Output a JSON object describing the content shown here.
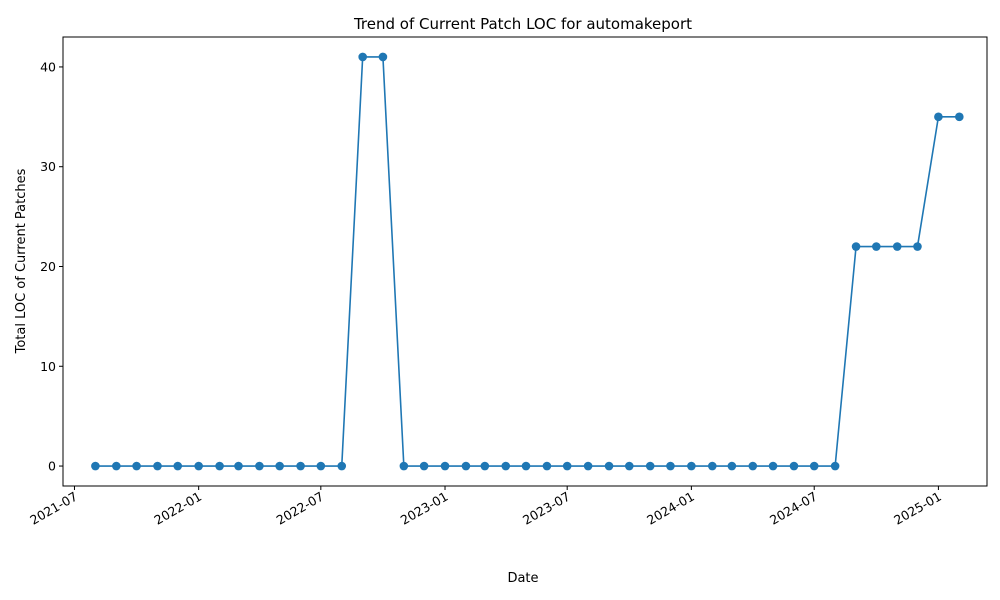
{
  "chart_data": {
    "type": "line",
    "title": "Trend of Current Patch LOC for automakeport",
    "xlabel": "Date",
    "ylabel": "Total LOC of Current Patches",
    "ylim": [
      -2,
      43
    ],
    "xlim": [
      "2021-06-14",
      "2025-03-14"
    ],
    "grid": false,
    "legend": "none",
    "line_color": "#1f77b4",
    "marker": "circle",
    "x_ticks": [
      "2021-07",
      "2022-01",
      "2022-07",
      "2023-01",
      "2023-07",
      "2024-01",
      "2024-07",
      "2025-01"
    ],
    "y_ticks": [
      0,
      10,
      20,
      30,
      40
    ],
    "x": [
      "2021-08-01",
      "2021-09-01",
      "2021-10-01",
      "2021-11-01",
      "2021-12-01",
      "2022-01-01",
      "2022-02-01",
      "2022-03-01",
      "2022-04-01",
      "2022-05-01",
      "2022-06-01",
      "2022-07-01",
      "2022-08-01",
      "2022-09-01",
      "2022-10-01",
      "2022-11-01",
      "2022-12-01",
      "2023-01-01",
      "2023-02-01",
      "2023-03-01",
      "2023-04-01",
      "2023-05-01",
      "2023-06-01",
      "2023-07-01",
      "2023-08-01",
      "2023-09-01",
      "2023-10-01",
      "2023-11-01",
      "2023-12-01",
      "2024-01-01",
      "2024-02-01",
      "2024-03-01",
      "2024-04-01",
      "2024-05-01",
      "2024-06-01",
      "2024-07-01",
      "2024-08-01",
      "2024-09-01",
      "2024-10-01",
      "2024-11-01",
      "2024-12-01",
      "2025-01-01",
      "2025-02-01"
    ],
    "series": [
      {
        "values": [
          0,
          0,
          0,
          0,
          0,
          0,
          0,
          0,
          0,
          0,
          0,
          0,
          0,
          41,
          41,
          0,
          0,
          0,
          0,
          0,
          0,
          0,
          0,
          0,
          0,
          0,
          0,
          0,
          0,
          0,
          0,
          0,
          0,
          0,
          0,
          0,
          0,
          22,
          22,
          22,
          22,
          35,
          35
        ]
      }
    ]
  }
}
